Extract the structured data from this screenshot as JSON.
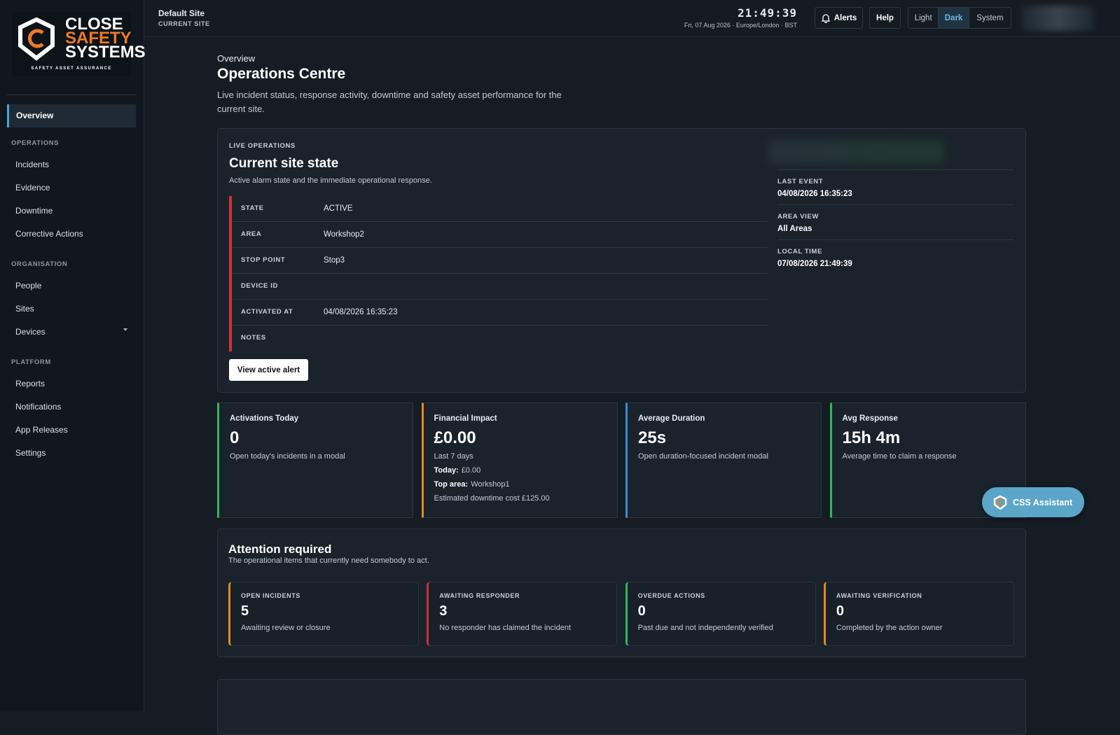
{
  "logo": {
    "line1": "CLOSE",
    "line2": "SAFETY",
    "line3": "SYSTEMS",
    "tagline": "SAFETY ASSET ASSURANCE"
  },
  "sidebar": {
    "active": "Overview",
    "sections": [
      {
        "heading": "OPERATIONS",
        "items": [
          "Incidents",
          "Evidence",
          "Downtime",
          "Corrective Actions"
        ]
      },
      {
        "heading": "ORGANISATION",
        "items": [
          "People",
          "Sites",
          "Devices"
        ]
      },
      {
        "heading": "PLATFORM",
        "items": [
          "Reports",
          "Notifications",
          "App Releases",
          "Settings"
        ]
      }
    ]
  },
  "topbar": {
    "site": "Default Site",
    "site_label": "CURRENT SITE",
    "clock": "21:49:39",
    "date": "Fri, 07 Aug 2026 · Europe/London · BST",
    "alerts": "Alerts",
    "help": "Help",
    "themes": [
      "Light",
      "Dark",
      "System"
    ]
  },
  "page": {
    "breadcrumb": "Overview",
    "title": "Operations Centre",
    "description": "Live incident status, response activity, downtime and safety asset performance for the current site."
  },
  "live": {
    "eyebrow": "LIVE OPERATIONS",
    "title": "Current site state",
    "subtitle": "Active alarm state and the immediate operational response.",
    "rows": [
      {
        "label": "STATE",
        "value": "ACTIVE"
      },
      {
        "label": "AREA",
        "value": "Workshop2"
      },
      {
        "label": "STOP POINT",
        "value": "Stop3"
      },
      {
        "label": "DEVICE ID"
      },
      {
        "label": "ACTIVATED AT",
        "value": "04/08/2026 16:35:23"
      },
      {
        "label": "NOTES"
      }
    ],
    "button": "View active alert",
    "side": [
      {
        "label": "LAST EVENT",
        "value": "04/08/2026 16:35:23"
      },
      {
        "label": "AREA VIEW",
        "value": "All Areas"
      },
      {
        "label": "LOCAL TIME",
        "value": "07/08/2026 21:49:39"
      }
    ]
  },
  "kpis": [
    {
      "title": "Activations Today",
      "value": "0",
      "note": "Open today's incidents in a modal"
    },
    {
      "title": "Financial Impact",
      "value": "£0.00",
      "note": "Last 7 days",
      "details": [
        {
          "label": "Today:",
          "value": "£0.00"
        },
        {
          "label": "Top area:",
          "value": "Workshop1"
        },
        {
          "value": "Estimated downtime cost £125.00"
        }
      ]
    },
    {
      "title": "Average Duration",
      "value": "25s",
      "note": "Open duration-focused incident modal"
    },
    {
      "title": "Avg Response",
      "value": "15h 4m",
      "note": "Average time to claim a response"
    }
  ],
  "attention": {
    "title": "Attention required",
    "subtitle": "The operational items that currently need somebody to act.",
    "cards": [
      {
        "label": "OPEN INCIDENTS",
        "value": "5",
        "note": "Awaiting review or closure"
      },
      {
        "label": "AWAITING RESPONDER",
        "value": "3",
        "note": "No responder has claimed the incident"
      },
      {
        "label": "OVERDUE ACTIONS",
        "value": "0",
        "note": "Past due and not independently verified"
      },
      {
        "label": "AWAITING VERIFICATION",
        "value": "0",
        "note": "Completed by the action owner"
      }
    ]
  },
  "assistant": "CSS Assistant"
}
